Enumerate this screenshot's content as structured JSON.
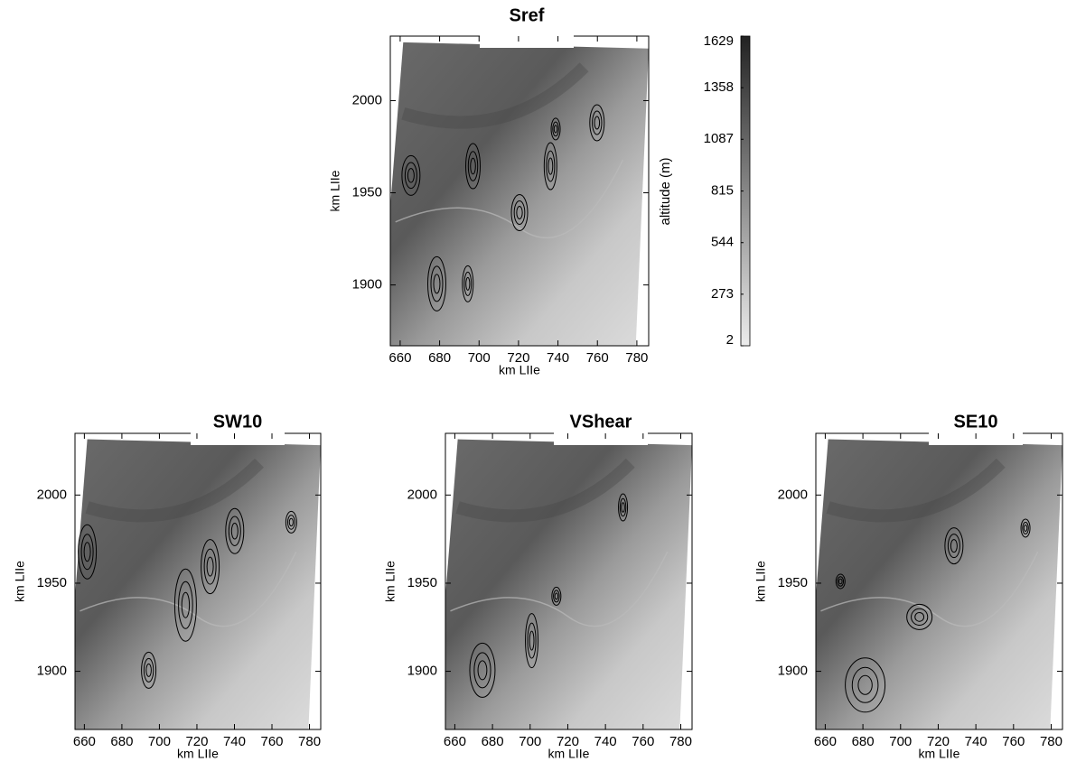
{
  "chart_data": [
    {
      "type": "map",
      "title": "Sref",
      "xlabel": "km LIIe",
      "ylabel": "km LIIe",
      "xlim": [
        655,
        786
      ],
      "ylim": [
        1867,
        2035
      ],
      "xticks": [
        660,
        680,
        700,
        720,
        740,
        760,
        780
      ],
      "yticks": [
        1900,
        1950,
        2000
      ],
      "colorbar": {
        "label": "altitude (m)",
        "lim": [
          2,
          1629
        ],
        "ticks": [
          2,
          273,
          544,
          815,
          1087,
          1358,
          1629
        ]
      }
    },
    {
      "type": "map",
      "title": "SW10",
      "xlabel": "km LIIe",
      "ylabel": "km LIIe",
      "xlim": [
        655,
        786
      ],
      "ylim": [
        1867,
        2035
      ],
      "xticks": [
        660,
        680,
        700,
        720,
        740,
        760,
        780
      ],
      "yticks": [
        1900,
        1950,
        2000
      ]
    },
    {
      "type": "map",
      "title": "VShear",
      "xlabel": "km LIIe",
      "ylabel": "km LIIe",
      "xlim": [
        655,
        786
      ],
      "ylim": [
        1867,
        2035
      ],
      "xticks": [
        660,
        680,
        700,
        720,
        740,
        760,
        780
      ],
      "yticks": [
        1900,
        1950,
        2000
      ]
    },
    {
      "type": "map",
      "title": "SE10",
      "xlabel": "km LIIe",
      "ylabel": "km LIIe",
      "xlim": [
        655,
        786
      ],
      "ylim": [
        1867,
        2035
      ],
      "xticks": [
        660,
        680,
        700,
        720,
        740,
        760,
        780
      ],
      "yticks": [
        1900,
        1950,
        2000
      ]
    }
  ]
}
